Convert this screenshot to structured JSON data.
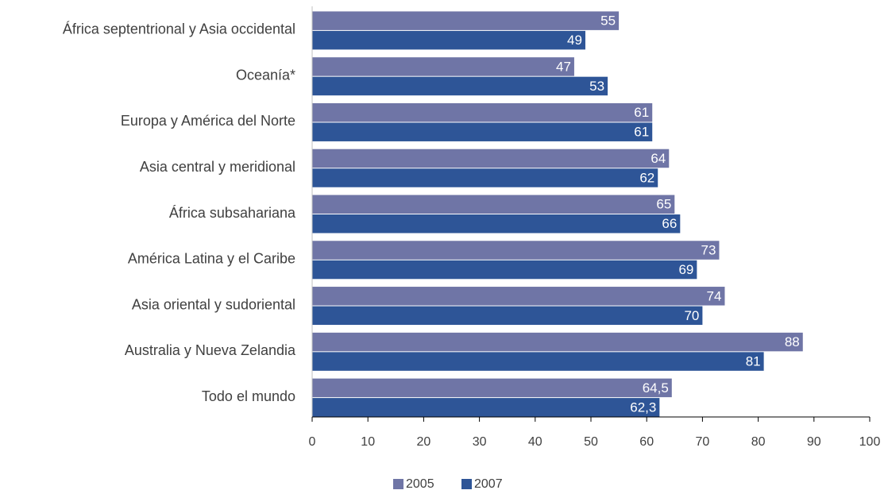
{
  "chart_data": {
    "type": "hbar",
    "categories": [
      "África septentrional y Asia occidental",
      "Oceanía*",
      "Europa y América del Norte",
      "Asia central y meridional",
      "África subsahariana",
      "América Latina y el Caribe",
      "Asia oriental y sudoriental",
      "Australia y  Nueva Zelandia",
      "Todo el mundo"
    ],
    "series": [
      {
        "name": "2005",
        "color": "#6f75a6",
        "values": [
          55,
          47,
          61,
          64,
          65,
          73,
          74,
          88,
          64.5
        ],
        "value_labels": [
          "55",
          "47",
          "61",
          "64",
          "65",
          "73",
          "74",
          "88",
          "64,5"
        ]
      },
      {
        "name": "2007",
        "color": "#2e5597",
        "values": [
          49,
          53,
          61,
          62,
          66,
          69,
          70,
          81,
          62.3
        ],
        "value_labels": [
          "49",
          "53",
          "61",
          "62",
          "66",
          "69",
          "70",
          "81",
          "62,3"
        ]
      }
    ],
    "xlim": [
      0,
      100
    ],
    "xticks": [
      0,
      10,
      20,
      30,
      40,
      50,
      60,
      70,
      80,
      90,
      100
    ],
    "legend": "bottom"
  }
}
